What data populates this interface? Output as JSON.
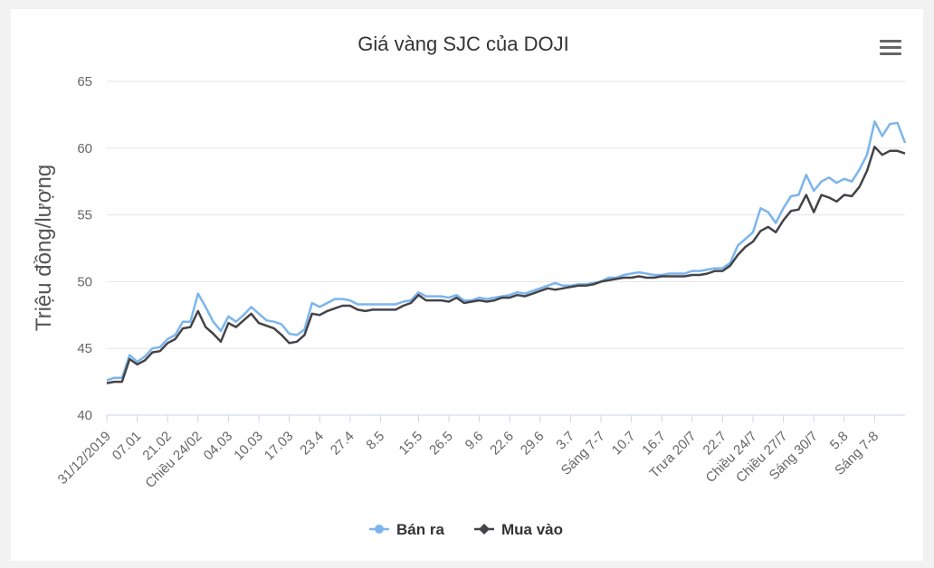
{
  "chart_data": {
    "type": "line",
    "title": "Giá vàng SJC của DOJI",
    "ylabel": "Triệu đồng/lượng",
    "xlabel": "",
    "ylim": [
      40,
      65
    ],
    "yticks": [
      40,
      45,
      50,
      55,
      60,
      65
    ],
    "grid": true,
    "legend_position": "bottom-center",
    "x_tick_labels": [
      "31/12/2019",
      "07.01",
      "21.02",
      "Chiều 24/02",
      "04.03",
      "10.03",
      "17.03",
      "23.4",
      "27.4",
      "8.5",
      "15.5",
      "26.5",
      "9.6",
      "22.6",
      "29.6",
      "3.7",
      "Sáng 7-7",
      "10.7",
      "16.7",
      "Trưa 20/7",
      "22.7",
      "Chiều 24/7",
      "Chiều 27/7",
      "Sáng 30/7",
      "5.8",
      "Sáng 7-8"
    ],
    "series": [
      {
        "name": "Bán ra",
        "color": "#7cb5ec",
        "marker": "circle",
        "values": [
          42.6,
          42.8,
          42.8,
          44.5,
          44.0,
          44.4,
          45.0,
          45.1,
          45.7,
          46.0,
          47.0,
          47.0,
          49.1,
          48.1,
          47.0,
          46.3,
          47.4,
          47.0,
          47.5,
          48.1,
          47.6,
          47.1,
          47.0,
          46.8,
          46.1,
          46.0,
          46.4,
          48.4,
          48.1,
          48.4,
          48.7,
          48.7,
          48.6,
          48.3,
          48.3,
          48.3,
          48.3,
          48.3,
          48.3,
          48.5,
          48.6,
          49.2,
          48.9,
          48.9,
          48.9,
          48.8,
          49.0,
          48.6,
          48.6,
          48.8,
          48.7,
          48.8,
          48.9,
          49.0,
          49.2,
          49.1,
          49.3,
          49.5,
          49.7,
          49.9,
          49.7,
          49.7,
          49.8,
          49.8,
          49.9,
          50.0,
          50.3,
          50.3,
          50.5,
          50.6,
          50.7,
          50.6,
          50.5,
          50.5,
          50.6,
          50.6,
          50.6,
          50.8,
          50.8,
          50.9,
          51.0,
          51.0,
          51.4,
          52.7,
          53.2,
          53.7,
          55.5,
          55.2,
          54.4,
          55.5,
          56.4,
          56.5,
          58.0,
          56.8,
          57.5,
          57.8,
          57.4,
          57.7,
          57.5,
          58.4,
          59.5,
          62.0,
          60.9,
          61.8,
          61.9,
          60.4
        ]
      },
      {
        "name": "Mua vào",
        "color": "#434348",
        "marker": "diamond",
        "values": [
          42.4,
          42.5,
          42.5,
          44.2,
          43.8,
          44.1,
          44.7,
          44.8,
          45.4,
          45.7,
          46.5,
          46.6,
          47.8,
          46.6,
          46.1,
          45.5,
          46.9,
          46.6,
          47.1,
          47.6,
          46.9,
          46.7,
          46.5,
          46.0,
          45.4,
          45.5,
          46.0,
          47.6,
          47.5,
          47.8,
          48.0,
          48.2,
          48.2,
          47.9,
          47.8,
          47.9,
          47.9,
          47.9,
          47.9,
          48.2,
          48.4,
          49.0,
          48.6,
          48.6,
          48.6,
          48.5,
          48.8,
          48.4,
          48.5,
          48.6,
          48.5,
          48.6,
          48.8,
          48.8,
          49.0,
          48.9,
          49.1,
          49.3,
          49.5,
          49.4,
          49.5,
          49.6,
          49.7,
          49.7,
          49.8,
          50.0,
          50.1,
          50.2,
          50.3,
          50.3,
          50.4,
          50.3,
          50.3,
          50.4,
          50.4,
          50.4,
          50.4,
          50.5,
          50.5,
          50.6,
          50.8,
          50.8,
          51.2,
          52.0,
          52.6,
          53.0,
          53.8,
          54.1,
          53.7,
          54.6,
          55.3,
          55.4,
          56.5,
          55.2,
          56.5,
          56.3,
          56.0,
          56.5,
          56.4,
          57.1,
          58.3,
          60.1,
          59.5,
          59.8,
          59.8,
          59.6
        ]
      }
    ]
  }
}
